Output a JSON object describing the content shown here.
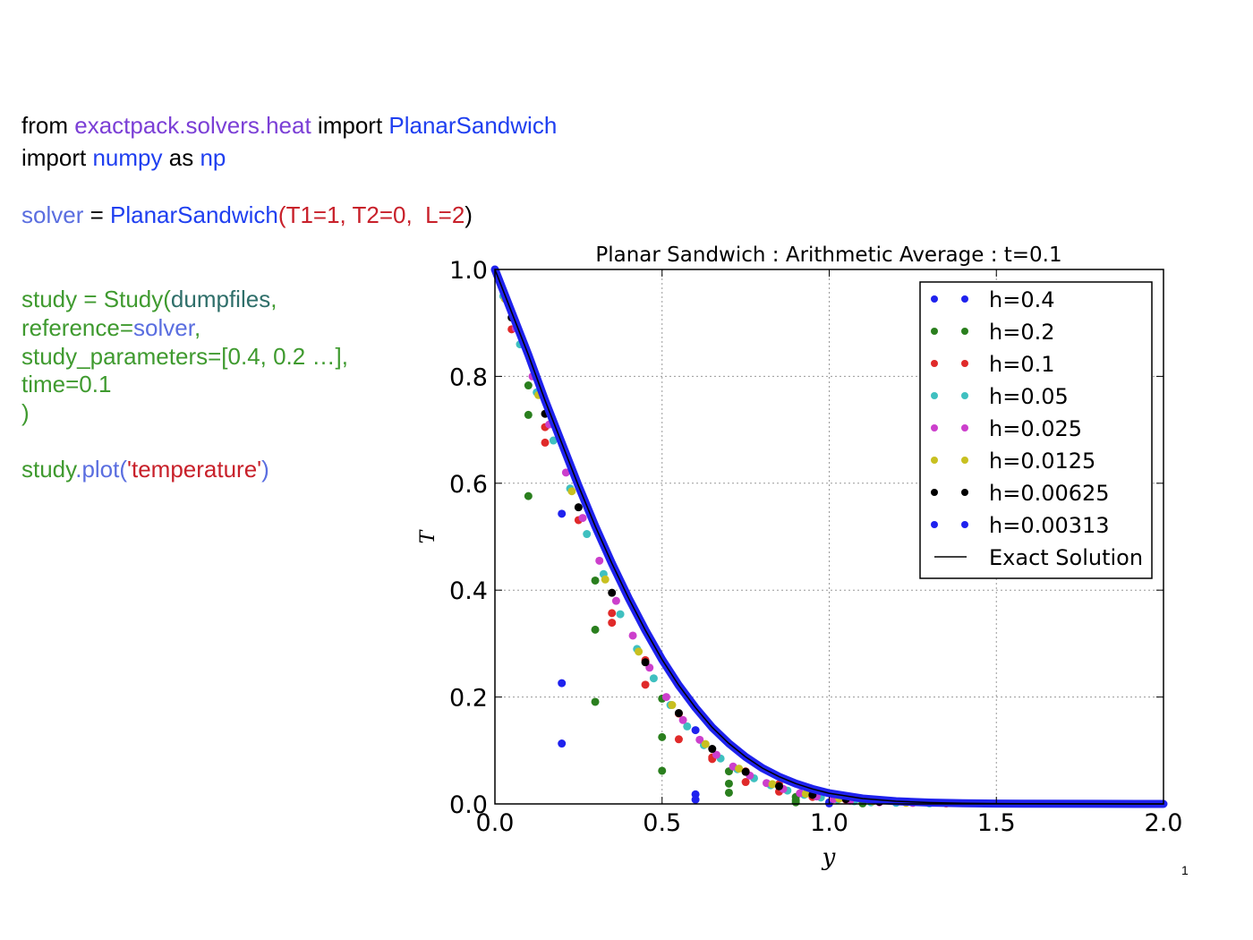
{
  "code": {
    "line1": {
      "a": "from ",
      "b": "exactpack.solvers.heat",
      "c": " import ",
      "d": "PlanarSandwich"
    },
    "line2": {
      "a": "import ",
      "b": "numpy",
      "c": " as ",
      "d": "np"
    },
    "line3": {
      "a": "solver",
      "b": " = ",
      "c": "PlanarSandwich",
      "d": "(",
      "e": "T1=1, T2=0,  L=2",
      "f": ")"
    },
    "line4": {
      "a": "study = Study(",
      "b": "dumpfiles",
      "c": ","
    },
    "line5": {
      "a": "reference=",
      "b": "solver",
      "c": ","
    },
    "line6": {
      "a": "study_parameters=[0.4, 0.2 …],"
    },
    "line7": {
      "a": "time=0.1"
    },
    "line8": {
      "a": ")"
    },
    "line9": {
      "a": "study",
      "b": ".plot(",
      "c": "'temperature'",
      "d": ")"
    }
  },
  "page_mark": "1",
  "chart_data": {
    "type": "scatter",
    "title": "Planar Sandwich : Arithmetic Average : t=0.1",
    "xlabel": "y",
    "ylabel": "T",
    "xlim": [
      0.0,
      2.0
    ],
    "ylim": [
      0.0,
      1.0
    ],
    "xticks": [
      "0.0",
      "0.5",
      "1.0",
      "1.5",
      "2.0"
    ],
    "yticks": [
      "0.0",
      "0.2",
      "0.4",
      "0.6",
      "0.8",
      "1.0"
    ],
    "grid": true,
    "legend_position": "top-right",
    "series": [
      {
        "name": "h=0.4",
        "color": "#1f22ee",
        "points": [
          [
            0.2,
            0.543
          ],
          [
            0.2,
            0.226
          ],
          [
            0.2,
            0.113
          ],
          [
            0.6,
            0.138
          ],
          [
            0.6,
            0.018
          ],
          [
            0.6,
            0.008
          ],
          [
            1.0,
            0.003
          ],
          [
            1.0,
            0.001
          ]
        ]
      },
      {
        "name": "h=0.2",
        "color": "#2a7f1e",
        "points": [
          [
            0.1,
            0.783
          ],
          [
            0.1,
            0.728
          ],
          [
            0.1,
            0.576
          ],
          [
            0.3,
            0.418
          ],
          [
            0.3,
            0.326
          ],
          [
            0.3,
            0.191
          ],
          [
            0.5,
            0.197
          ],
          [
            0.5,
            0.125
          ],
          [
            0.5,
            0.062
          ],
          [
            0.7,
            0.061
          ],
          [
            0.7,
            0.038
          ],
          [
            0.7,
            0.021
          ],
          [
            0.9,
            0.013
          ],
          [
            0.9,
            0.007
          ],
          [
            0.9,
            0.003
          ],
          [
            1.1,
            0.002
          ],
          [
            1.1,
            0.001
          ]
        ]
      },
      {
        "name": "h=0.1",
        "color": "#e02a2a",
        "points": [
          [
            0.05,
            0.888
          ],
          [
            0.15,
            0.705
          ],
          [
            0.15,
            0.676
          ],
          [
            0.25,
            0.531
          ],
          [
            0.35,
            0.339
          ],
          [
            0.35,
            0.357
          ],
          [
            0.45,
            0.269
          ],
          [
            0.45,
            0.223
          ],
          [
            0.55,
            0.169
          ],
          [
            0.55,
            0.121
          ],
          [
            0.65,
            0.087
          ],
          [
            0.65,
            0.084
          ],
          [
            0.75,
            0.061
          ],
          [
            0.75,
            0.041
          ],
          [
            0.85,
            0.037
          ],
          [
            0.85,
            0.023
          ],
          [
            0.95,
            0.013
          ],
          [
            1.05,
            0.008
          ],
          [
            1.15,
            0.004
          ],
          [
            1.25,
            0.002
          ],
          [
            1.35,
            0.001
          ]
        ]
      },
      {
        "name": "h=0.05",
        "color": "#3fc0c0",
        "points": [
          [
            0.025,
            0.95
          ],
          [
            0.075,
            0.86
          ],
          [
            0.125,
            0.77
          ],
          [
            0.175,
            0.68
          ],
          [
            0.225,
            0.59
          ],
          [
            0.275,
            0.505
          ],
          [
            0.325,
            0.43
          ],
          [
            0.375,
            0.355
          ],
          [
            0.425,
            0.29
          ],
          [
            0.475,
            0.235
          ],
          [
            0.525,
            0.185
          ],
          [
            0.575,
            0.145
          ],
          [
            0.625,
            0.11
          ],
          [
            0.675,
            0.085
          ],
          [
            0.725,
            0.065
          ],
          [
            0.775,
            0.048
          ],
          [
            0.825,
            0.035
          ],
          [
            0.875,
            0.025
          ],
          [
            0.925,
            0.017
          ],
          [
            0.975,
            0.012
          ],
          [
            1.025,
            0.008
          ],
          [
            1.075,
            0.005
          ],
          [
            1.125,
            0.003
          ],
          [
            1.2,
            0.002
          ],
          [
            1.3,
            0.001
          ]
        ]
      },
      {
        "name": "h=0.025",
        "color": "#cc3fcc",
        "points": [
          [
            0.0125,
            0.98
          ],
          [
            0.0625,
            0.89
          ],
          [
            0.1125,
            0.8
          ],
          [
            0.1625,
            0.71
          ],
          [
            0.2125,
            0.62
          ],
          [
            0.2625,
            0.535
          ],
          [
            0.3125,
            0.455
          ],
          [
            0.3625,
            0.38
          ],
          [
            0.4125,
            0.315
          ],
          [
            0.4625,
            0.255
          ],
          [
            0.5125,
            0.2
          ],
          [
            0.5625,
            0.157
          ],
          [
            0.6125,
            0.12
          ],
          [
            0.6625,
            0.092
          ],
          [
            0.7125,
            0.07
          ],
          [
            0.7625,
            0.053
          ],
          [
            0.8125,
            0.039
          ],
          [
            0.8625,
            0.028
          ],
          [
            0.9125,
            0.02
          ],
          [
            0.9625,
            0.014
          ],
          [
            1.0125,
            0.009
          ],
          [
            1.0625,
            0.006
          ],
          [
            1.15,
            0.003
          ],
          [
            1.25,
            0.002
          ]
        ]
      },
      {
        "name": "h=0.0125",
        "color": "#c8c020",
        "points": [
          [
            0.03,
            0.945
          ],
          [
            0.13,
            0.765
          ],
          [
            0.23,
            0.585
          ],
          [
            0.33,
            0.42
          ],
          [
            0.43,
            0.285
          ],
          [
            0.53,
            0.185
          ],
          [
            0.63,
            0.112
          ],
          [
            0.73,
            0.066
          ],
          [
            0.83,
            0.037
          ],
          [
            0.93,
            0.019
          ],
          [
            1.03,
            0.01
          ],
          [
            1.13,
            0.005
          ],
          [
            1.23,
            0.002
          ]
        ]
      },
      {
        "name": "h=0.00625",
        "color": "#000000",
        "points": [
          [
            0.05,
            0.91
          ],
          [
            0.15,
            0.73
          ],
          [
            0.25,
            0.555
          ],
          [
            0.35,
            0.395
          ],
          [
            0.45,
            0.265
          ],
          [
            0.55,
            0.17
          ],
          [
            0.65,
            0.103
          ],
          [
            0.75,
            0.06
          ],
          [
            0.85,
            0.033
          ],
          [
            0.95,
            0.017
          ],
          [
            1.05,
            0.009
          ],
          [
            1.15,
            0.004
          ]
        ]
      },
      {
        "name": "h=0.00313",
        "color": "#1f22ee",
        "dense": true,
        "points": [
          [
            0.0,
            1.0
          ],
          [
            0.05,
            0.92
          ],
          [
            0.1,
            0.84
          ],
          [
            0.15,
            0.755
          ],
          [
            0.2,
            0.675
          ],
          [
            0.25,
            0.595
          ],
          [
            0.3,
            0.52
          ],
          [
            0.35,
            0.45
          ],
          [
            0.4,
            0.385
          ],
          [
            0.45,
            0.325
          ],
          [
            0.5,
            0.27
          ],
          [
            0.55,
            0.222
          ],
          [
            0.6,
            0.18
          ],
          [
            0.65,
            0.143
          ],
          [
            0.7,
            0.113
          ],
          [
            0.75,
            0.088
          ],
          [
            0.8,
            0.067
          ],
          [
            0.85,
            0.051
          ],
          [
            0.9,
            0.038
          ],
          [
            0.95,
            0.028
          ],
          [
            1.0,
            0.02
          ],
          [
            1.1,
            0.01
          ],
          [
            1.2,
            0.005
          ],
          [
            1.3,
            0.0025
          ],
          [
            1.4,
            0.0012
          ],
          [
            1.5,
            0.0006
          ],
          [
            1.6,
            0.0003
          ],
          [
            1.8,
            0.0001
          ],
          [
            2.0,
            0.0
          ]
        ]
      },
      {
        "name": "Exact Solution",
        "color": "#000000",
        "line": true,
        "points": [
          [
            0.0,
            1.0
          ],
          [
            0.05,
            0.92
          ],
          [
            0.1,
            0.84
          ],
          [
            0.15,
            0.755
          ],
          [
            0.2,
            0.675
          ],
          [
            0.25,
            0.595
          ],
          [
            0.3,
            0.52
          ],
          [
            0.35,
            0.45
          ],
          [
            0.4,
            0.385
          ],
          [
            0.45,
            0.325
          ],
          [
            0.5,
            0.27
          ],
          [
            0.55,
            0.222
          ],
          [
            0.6,
            0.18
          ],
          [
            0.65,
            0.143
          ],
          [
            0.7,
            0.113
          ],
          [
            0.75,
            0.088
          ],
          [
            0.8,
            0.067
          ],
          [
            0.85,
            0.051
          ],
          [
            0.9,
            0.038
          ],
          [
            0.95,
            0.028
          ],
          [
            1.0,
            0.02
          ],
          [
            1.1,
            0.01
          ],
          [
            1.2,
            0.005
          ],
          [
            1.3,
            0.0025
          ],
          [
            1.4,
            0.0012
          ],
          [
            1.5,
            0.0006
          ],
          [
            1.6,
            0.0003
          ],
          [
            1.8,
            0.0001
          ],
          [
            2.0,
            0.0
          ]
        ]
      }
    ]
  }
}
